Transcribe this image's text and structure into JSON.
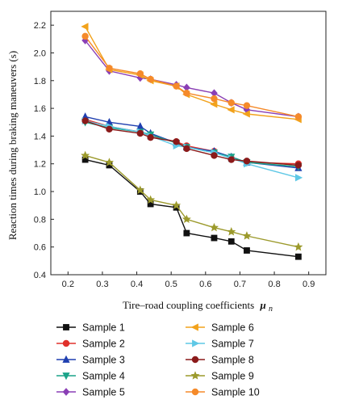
{
  "chart_data": {
    "type": "line",
    "title": "",
    "xlabel": "Tire–road coupling coefficients",
    "xlabel_symbol": "μ",
    "xlabel_subscript": "n",
    "ylabel": "Reaction times during braking maneuvers (s)",
    "xlim": [
      0.15,
      0.95
    ],
    "ylim": [
      0.4,
      2.3
    ],
    "xticks": [
      "0.2",
      "0.3",
      "0.4",
      "0.5",
      "0.6",
      "0.7",
      "0.8",
      "0.9"
    ],
    "yticks": [
      "0.4",
      "0.6",
      "0.8",
      "1.0",
      "1.2",
      "1.4",
      "1.6",
      "1.8",
      "2.0",
      "2.2"
    ],
    "grid": false,
    "legend_position": "bottom",
    "series": [
      {
        "name": "Sample 1",
        "color": "#111111",
        "marker": "square",
        "x": [
          0.25,
          0.32,
          0.41,
          0.44,
          0.515,
          0.545,
          0.625,
          0.675,
          0.72,
          0.87
        ],
        "y": [
          1.23,
          1.19,
          1.0,
          0.91,
          0.885,
          0.7,
          0.665,
          0.64,
          0.575,
          0.53
        ]
      },
      {
        "name": "Sample 2",
        "color": "#e0312b",
        "marker": "circle",
        "x": [
          0.25,
          0.32,
          0.41,
          0.44,
          0.515,
          0.545,
          0.625,
          0.675,
          0.72,
          0.87
        ],
        "y": [
          1.52,
          1.47,
          1.43,
          1.4,
          1.36,
          1.33,
          1.29,
          1.24,
          1.21,
          1.2
        ]
      },
      {
        "name": "Sample 3",
        "color": "#1f3fb0",
        "marker": "triangle-up",
        "x": [
          0.25,
          0.32,
          0.41,
          0.44,
          0.515,
          0.545,
          0.625,
          0.675,
          0.72,
          0.87
        ],
        "y": [
          1.54,
          1.5,
          1.47,
          1.42,
          1.35,
          1.32,
          1.29,
          1.25,
          1.21,
          1.17
        ]
      },
      {
        "name": "Sample 4",
        "color": "#1aa389",
        "marker": "triangle-down",
        "x": [
          0.25,
          0.32,
          0.41,
          0.44,
          0.515,
          0.545,
          0.625,
          0.675,
          0.72,
          0.87
        ],
        "y": [
          1.5,
          1.46,
          1.43,
          1.41,
          1.35,
          1.32,
          1.28,
          1.25,
          1.21,
          1.18
        ]
      },
      {
        "name": "Sample 5",
        "color": "#8a3fb5",
        "marker": "diamond",
        "x": [
          0.25,
          0.32,
          0.41,
          0.44,
          0.515,
          0.545,
          0.625,
          0.675,
          0.72,
          0.87
        ],
        "y": [
          2.09,
          1.87,
          1.82,
          1.81,
          1.77,
          1.75,
          1.71,
          1.64,
          1.59,
          1.54
        ]
      },
      {
        "name": "Sample 6",
        "color": "#f2a21b",
        "marker": "triangle-left",
        "x": [
          0.25,
          0.32,
          0.41,
          0.44,
          0.515,
          0.545,
          0.625,
          0.675,
          0.72,
          0.87
        ],
        "y": [
          2.19,
          1.88,
          1.84,
          1.8,
          1.76,
          1.7,
          1.63,
          1.59,
          1.56,
          1.52
        ]
      },
      {
        "name": "Sample 7",
        "color": "#5fc8e6",
        "marker": "triangle-right",
        "x": [
          0.25,
          0.32,
          0.41,
          0.44,
          0.515,
          0.545,
          0.625,
          0.675,
          0.72,
          0.87
        ],
        "y": [
          1.51,
          1.47,
          1.43,
          1.4,
          1.33,
          1.32,
          1.28,
          1.24,
          1.2,
          1.1
        ]
      },
      {
        "name": "Sample 8",
        "color": "#8b1a1a",
        "marker": "circle",
        "x": [
          0.25,
          0.32,
          0.41,
          0.44,
          0.515,
          0.545,
          0.625,
          0.675,
          0.72,
          0.87
        ],
        "y": [
          1.51,
          1.45,
          1.42,
          1.39,
          1.36,
          1.31,
          1.26,
          1.23,
          1.22,
          1.19
        ]
      },
      {
        "name": "Sample 9",
        "color": "#9c9a2c",
        "marker": "star",
        "x": [
          0.25,
          0.32,
          0.41,
          0.44,
          0.515,
          0.545,
          0.625,
          0.675,
          0.72,
          0.87
        ],
        "y": [
          1.26,
          1.21,
          1.01,
          0.94,
          0.9,
          0.8,
          0.74,
          0.71,
          0.68,
          0.6
        ]
      },
      {
        "name": "Sample 10",
        "color": "#f58a2a",
        "marker": "circle",
        "x": [
          0.25,
          0.32,
          0.41,
          0.44,
          0.515,
          0.545,
          0.625,
          0.675,
          0.72,
          0.87
        ],
        "y": [
          2.12,
          1.89,
          1.85,
          1.81,
          1.76,
          1.71,
          1.67,
          1.64,
          1.62,
          1.54
        ]
      }
    ]
  }
}
